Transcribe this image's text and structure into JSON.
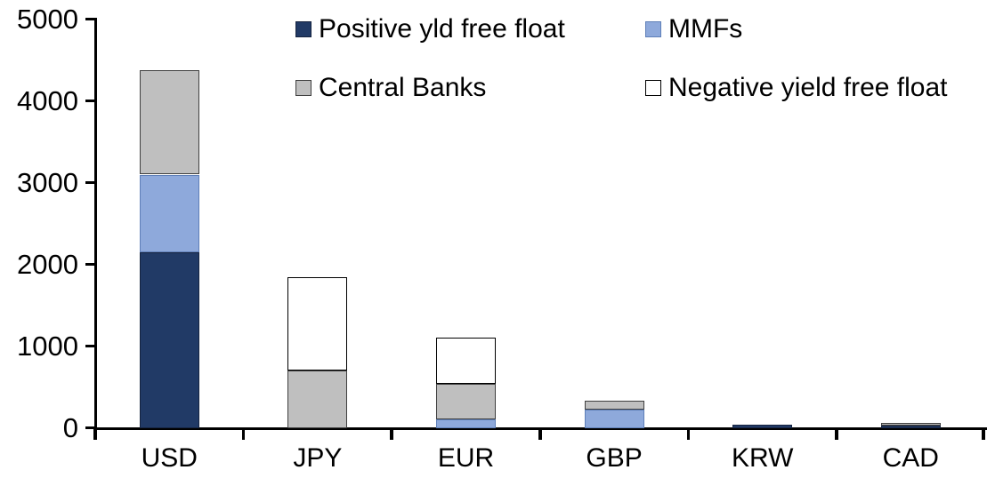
{
  "chart_data": {
    "type": "bar",
    "stacked": true,
    "title": "",
    "xlabel": "",
    "ylabel": "",
    "categories": [
      "USD",
      "JPY",
      "EUR",
      "GBP",
      "KRW",
      "CAD"
    ],
    "series": [
      {
        "name": "Positive yld free float",
        "color": "#213A66",
        "border_color": "#15233F",
        "values": [
          2150,
          0,
          0,
          0,
          45,
          30
        ]
      },
      {
        "name": "MMFs",
        "color": "#8EA9DB",
        "border_color": "#5E7FB8",
        "values": [
          950,
          0,
          110,
          220,
          0,
          0
        ]
      },
      {
        "name": "Central Banks",
        "color": "#BFBFBF",
        "border_color": "#3F3F3F",
        "values": [
          1280,
          700,
          430,
          110,
          0,
          30
        ]
      },
      {
        "name": "Negative yield free float",
        "color": "#FFFFFF",
        "border_color": "#000000",
        "values": [
          0,
          1145,
          570,
          0,
          0,
          0
        ]
      }
    ],
    "totals": [
      4380,
      1845,
      1110,
      330,
      45,
      60
    ],
    "ylim": [
      0,
      5000
    ],
    "yticks": [
      0,
      1000,
      2000,
      3000,
      4000,
      5000
    ],
    "grid": false,
    "legend_position": "top",
    "legend_rows": [
      [
        "Positive yld free float",
        "MMFs"
      ],
      [
        "Central Banks",
        "Negative yield free float"
      ]
    ],
    "axis_color": "#000000",
    "background_color": "#FFFFFF"
  }
}
